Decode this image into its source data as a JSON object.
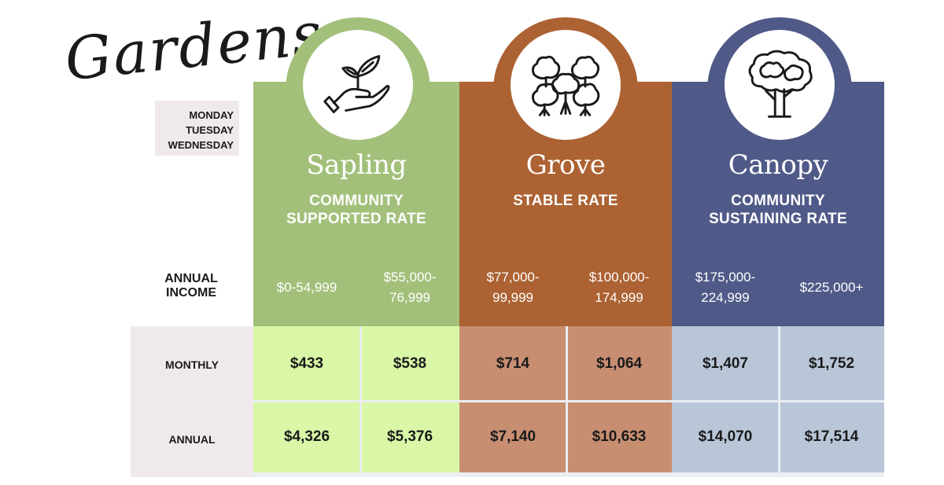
{
  "title": "Gardens",
  "days": [
    "MONDAY",
    "TUESDAY",
    "WEDNESDAY"
  ],
  "row_labels": {
    "income": [
      "ANNUAL",
      "INCOME"
    ],
    "monthly": "MONTHLY",
    "annual": "ANNUAL"
  },
  "tiers": [
    {
      "name": "Sapling",
      "rate_lines": [
        "COMMUNITY",
        "SUPPORTED RATE"
      ],
      "color": "#a3c07b",
      "cell_color": "#d9f7a6",
      "icon": "hand-sprout-icon",
      "brackets": [
        {
          "income_lines": [
            "$0-54,999"
          ],
          "monthly": "$433",
          "annual": "$4,326"
        },
        {
          "income_lines": [
            "$55,000-",
            "76,999"
          ],
          "monthly": "$538",
          "annual": "$5,376"
        }
      ]
    },
    {
      "name": "Grove",
      "rate_lines": [
        "STABLE RATE"
      ],
      "color": "#ac6232",
      "cell_color": "#c88e72",
      "icon": "grove-trees-icon",
      "brackets": [
        {
          "income_lines": [
            "$77,000-",
            "99,999"
          ],
          "monthly": "$714",
          "annual": "$7,140"
        },
        {
          "income_lines": [
            "$100,000-",
            "174,999"
          ],
          "monthly": "$1,064",
          "annual": "$10,633"
        }
      ]
    },
    {
      "name": "Canopy",
      "rate_lines": [
        "COMMUNITY",
        "SUSTAINING RATE"
      ],
      "color": "#505a88",
      "cell_color": "#b8c6d8",
      "icon": "tree-icon",
      "brackets": [
        {
          "income_lines": [
            "$175,000-",
            "224,999"
          ],
          "monthly": "$1,407",
          "annual": "$14,070"
        },
        {
          "income_lines": [
            "$225,000+"
          ],
          "monthly": "$1,752",
          "annual": "$17,514"
        }
      ]
    }
  ]
}
